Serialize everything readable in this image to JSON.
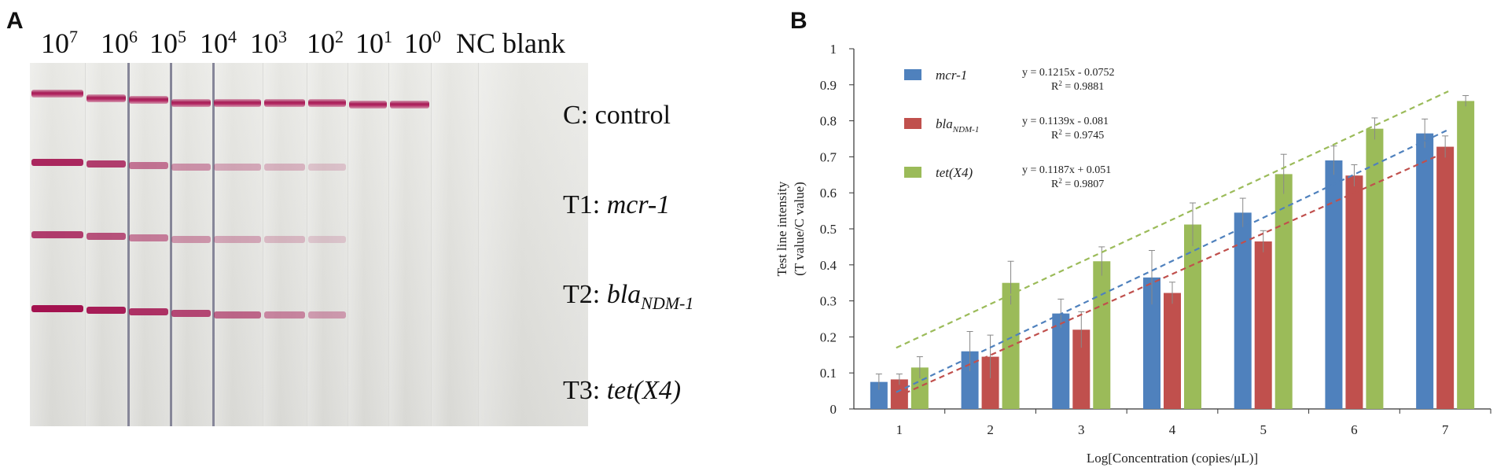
{
  "panel_a": {
    "letter": "A",
    "concentration_labels": [
      {
        "base": "10",
        "exp": "7"
      },
      {
        "base": "10",
        "exp": "6"
      },
      {
        "base": "10",
        "exp": "5"
      },
      {
        "base": "10",
        "exp": "4"
      },
      {
        "base": "10",
        "exp": "3"
      },
      {
        "base": "10",
        "exp": "2"
      },
      {
        "base": "10",
        "exp": "1"
      },
      {
        "base": "10",
        "exp": "0"
      },
      {
        "base": "NC blank",
        "exp": ""
      }
    ],
    "rows": {
      "control": {
        "prefix": "C: control"
      },
      "t1": {
        "prefix": "T1: ",
        "gene": "mcr-1",
        "sub": ""
      },
      "t2": {
        "prefix": "T2: ",
        "gene": "bla",
        "sub": "NDM-1"
      },
      "t3": {
        "prefix": "T3: ",
        "gene": "tet(X4)",
        "sub": ""
      }
    },
    "band_intensity": {
      "control": [
        1,
        1,
        1,
        1,
        1,
        1,
        1,
        1,
        1
      ],
      "t1": [
        0.9,
        0.8,
        0.55,
        0.4,
        0.3,
        0.25,
        0.18,
        0,
        0
      ],
      "t2": [
        0.8,
        0.7,
        0.5,
        0.38,
        0.3,
        0.22,
        0.16,
        0,
        0
      ],
      "t3": [
        1,
        0.95,
        0.85,
        0.75,
        0.6,
        0.45,
        0.35,
        0,
        0
      ]
    },
    "colors": {
      "band": "#a3124f"
    }
  },
  "panel_b": {
    "letter": "B"
  },
  "chart_data": {
    "type": "bar",
    "title": "",
    "xlabel": "Log[Concentration (copies/μL)]",
    "ylabel_line1": "Test line intensity",
    "ylabel_line2": "(T value/C value)",
    "categories": [
      "1",
      "2",
      "3",
      "4",
      "5",
      "6",
      "7"
    ],
    "ylim": [
      0,
      1
    ],
    "yticks": [
      "0",
      "0.1",
      "0.2",
      "0.3",
      "0.4",
      "0.5",
      "0.6",
      "0.7",
      "0.8",
      "0.9",
      "1"
    ],
    "series": [
      {
        "name": "mcr-1",
        "name_base": "mcr-1",
        "name_sub": "",
        "color": "#4f81bd",
        "values": [
          0.075,
          0.16,
          0.265,
          0.365,
          0.545,
          0.69,
          0.765
        ],
        "errors": [
          0.022,
          0.055,
          0.04,
          0.075,
          0.04,
          0.04,
          0.04
        ],
        "trend": {
          "slope": 0.1215,
          "intercept": -0.0752,
          "eq": "y = 0.1215x - 0.0752",
          "r2_label": "R",
          "r2_value": " = 0.9881"
        }
      },
      {
        "name": "blaNDM-1",
        "name_base": "bla",
        "name_sub": "NDM-1",
        "color": "#c0504d",
        "values": [
          0.082,
          0.145,
          0.22,
          0.322,
          0.465,
          0.648,
          0.728
        ],
        "errors": [
          0.015,
          0.06,
          0.05,
          0.03,
          0.03,
          0.03,
          0.03
        ],
        "trend": {
          "slope": 0.1139,
          "intercept": -0.081,
          "eq": "y = 0.1139x - 0.081",
          "r2_label": "R",
          "r2_value": " = 0.9745"
        }
      },
      {
        "name": "tet(X4)",
        "name_base": "tet(X4)",
        "name_sub": "",
        "color": "#9bbb59",
        "values": [
          0.115,
          0.35,
          0.41,
          0.512,
          0.652,
          0.778,
          0.855
        ],
        "errors": [
          0.03,
          0.06,
          0.04,
          0.06,
          0.055,
          0.03,
          0.015
        ],
        "trend": {
          "slope": 0.1187,
          "intercept": 0.051,
          "eq": "y = 0.1187x + 0.051",
          "r2_label": "R",
          "r2_value": " = 0.9807"
        }
      }
    ],
    "legend": "top-left",
    "grid": false
  }
}
